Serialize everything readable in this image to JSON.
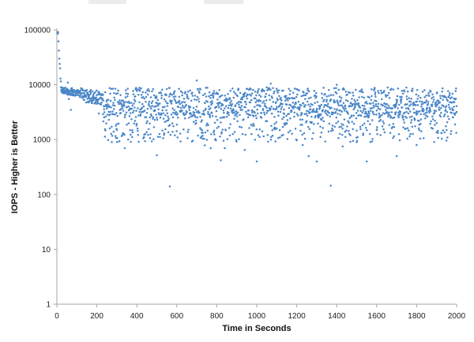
{
  "chart_data": {
    "type": "scatter",
    "title": "",
    "xlabel": "Time in Seconds",
    "ylabel": "IOPS - Higher is Better",
    "xlim": [
      0,
      2000
    ],
    "ylim": [
      1,
      100000
    ],
    "y_scale": "log",
    "x_ticks": [
      0,
      200,
      400,
      600,
      800,
      1000,
      1200,
      1400,
      1600,
      1800,
      2000
    ],
    "y_ticks": [
      1,
      10,
      100,
      1000,
      10000,
      100000
    ],
    "grid": false,
    "legend": "none",
    "marker_color": "#4a86c8",
    "points": [
      [
        1,
        90000
      ],
      [
        2,
        88000
      ],
      [
        3,
        92000
      ],
      [
        4,
        85000
      ],
      [
        5,
        86000
      ],
      [
        6,
        91000
      ],
      [
        8,
        62000
      ],
      [
        10,
        42000
      ],
      [
        12,
        30000
      ],
      [
        14,
        24000
      ],
      [
        16,
        20000
      ],
      [
        18,
        13000
      ],
      [
        20,
        11500
      ],
      [
        22,
        9000
      ],
      [
        25,
        8200
      ],
      [
        30,
        7800
      ],
      [
        35,
        8400
      ],
      [
        40,
        7500
      ],
      [
        45,
        7000
      ],
      [
        50,
        7200
      ],
      [
        55,
        11000
      ],
      [
        60,
        5500
      ],
      [
        70,
        3500
      ],
      [
        75,
        8700
      ],
      [
        80,
        8100
      ],
      [
        100,
        7600
      ],
      [
        120,
        7000
      ],
      [
        140,
        6600
      ],
      [
        160,
        6200
      ],
      [
        180,
        6000
      ],
      [
        200,
        4500
      ],
      [
        210,
        3000
      ],
      [
        260,
        2300
      ],
      [
        300,
        1500
      ],
      [
        340,
        700
      ],
      [
        500,
        520
      ],
      [
        565,
        140
      ],
      [
        590,
        1200
      ],
      [
        620,
        3800
      ],
      [
        700,
        12000
      ],
      [
        740,
        790
      ],
      [
        770,
        700
      ],
      [
        800,
        7200
      ],
      [
        820,
        420
      ],
      [
        840,
        700
      ],
      [
        900,
        3000
      ],
      [
        940,
        650
      ],
      [
        1000,
        400
      ],
      [
        1050,
        9000
      ],
      [
        1070,
        10500
      ],
      [
        1100,
        1600
      ],
      [
        1150,
        2000
      ],
      [
        1230,
        800
      ],
      [
        1260,
        500
      ],
      [
        1300,
        400
      ],
      [
        1330,
        2500
      ],
      [
        1370,
        145
      ],
      [
        1400,
        10000
      ],
      [
        1430,
        750
      ],
      [
        1500,
        900
      ],
      [
        1550,
        400
      ],
      [
        1600,
        1500
      ],
      [
        1650,
        3200
      ],
      [
        1700,
        500
      ],
      [
        1750,
        2500
      ],
      [
        1800,
        800
      ],
      [
        1850,
        3500
      ],
      [
        1900,
        2000
      ],
      [
        1950,
        1500
      ],
      [
        2000,
        3200
      ]
    ],
    "dense_band": {
      "x_range": [
        20,
        2000
      ],
      "count": 1750,
      "median": 5000,
      "spread_low": 900,
      "spread_high": 9500
    }
  }
}
